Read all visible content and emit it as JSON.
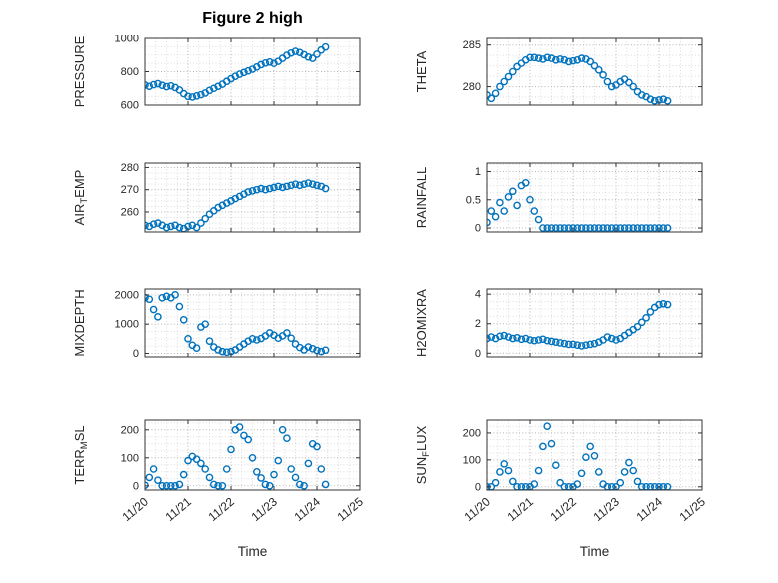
{
  "chart_data": {
    "type": "scatter",
    "layout": "4x2 subplots",
    "title": "Figure 2 high",
    "xlabel": "Time",
    "x_unit": "days since 11/20",
    "xlim": [
      0,
      5
    ],
    "x_tick_values": [
      0,
      1,
      2,
      3,
      4,
      5
    ],
    "x_tick_labels": [
      "11/20",
      "11/21",
      "11/22",
      "11/23",
      "11/24",
      "11/25"
    ],
    "grid": "dotted major and minor, both axes",
    "marker": {
      "shape": "open-circle",
      "color": "#0072BD"
    },
    "style": {
      "marker_color": "#0072BD",
      "axis_color": "#333333",
      "text_color": "#262626",
      "grid_major_color": "#b3b3b3",
      "grid_minor_color": "#dadada"
    },
    "x": [
      0,
      0.1,
      0.2,
      0.3,
      0.4,
      0.5,
      0.6,
      0.7,
      0.8,
      0.9,
      1,
      1.1,
      1.2,
      1.3,
      1.4,
      1.5,
      1.6,
      1.7,
      1.8,
      1.9,
      2,
      2.1,
      2.2,
      2.3,
      2.4,
      2.5,
      2.6,
      2.7,
      2.8,
      2.9,
      3,
      3.1,
      3.2,
      3.3,
      3.4,
      3.5,
      3.6,
      3.7,
      3.8,
      3.9,
      4,
      4.1,
      4.2
    ],
    "subplots": [
      {
        "name": "pressure",
        "ylabel": "PRESSURE",
        "ylabel_parts": [
          {
            "t": "PRESSURE"
          }
        ],
        "ylim": [
          600,
          1000
        ],
        "yticks": [
          600,
          800,
          1000
        ],
        "y": [
          720,
          712,
          722,
          728,
          718,
          710,
          715,
          705,
          690,
          668,
          652,
          648,
          655,
          662,
          672,
          688,
          700,
          712,
          725,
          742,
          758,
          772,
          785,
          795,
          805,
          815,
          828,
          842,
          852,
          858,
          850,
          862,
          880,
          898,
          912,
          922,
          915,
          902,
          888,
          880,
          905,
          930,
          948
        ]
      },
      {
        "name": "theta",
        "ylabel": "THETA",
        "ylabel_parts": [
          {
            "t": "THETA"
          }
        ],
        "ylim": [
          277.8,
          285.8
        ],
        "yticks": [
          280,
          285
        ],
        "y": [
          279,
          278.6,
          279.2,
          280,
          280.6,
          281.2,
          281.8,
          282.4,
          282.8,
          283.2,
          283.5,
          283.5,
          283.4,
          283.3,
          283.5,
          283.4,
          283.2,
          283.3,
          283.2,
          283.0,
          283.1,
          283.2,
          283.4,
          283.3,
          283.0,
          282.5,
          282.0,
          281.4,
          280.6,
          280.0,
          280.2,
          280.6,
          280.9,
          280.5,
          280.0,
          279.4,
          279.0,
          278.8,
          278.5,
          278.3,
          278.4,
          278.5,
          278.3
        ]
      },
      {
        "name": "airtemp",
        "ylabel": "AIR_TEMP",
        "ylabel_parts": [
          {
            "t": "AIR"
          },
          {
            "t": "T",
            "sub": true
          },
          {
            "t": "EMP"
          }
        ],
        "ylim": [
          251,
          282
        ],
        "yticks": [
          260,
          270,
          280
        ],
        "y": [
          254,
          253.5,
          254.5,
          255,
          254,
          253,
          253.5,
          254,
          253,
          252.5,
          253.5,
          254,
          253,
          255,
          257,
          259,
          260.5,
          262,
          263,
          264,
          265,
          266,
          267,
          268,
          269,
          269.5,
          270,
          270.5,
          270,
          270.5,
          271,
          271.5,
          271,
          271.5,
          272,
          272.5,
          272,
          272.5,
          273,
          272.5,
          272,
          271.5,
          270.5
        ]
      },
      {
        "name": "rainfall",
        "ylabel": "RAINFALL",
        "ylabel_parts": [
          {
            "t": "RAINFALL"
          }
        ],
        "ylim": [
          -0.07,
          1.15
        ],
        "yticks": [
          0,
          0.5,
          1
        ],
        "y": [
          0.1,
          0.3,
          0.2,
          0.45,
          0.3,
          0.55,
          0.65,
          0.4,
          0.75,
          0.8,
          0.5,
          0.3,
          0.15,
          0,
          0,
          0,
          0,
          0,
          0,
          0,
          0,
          0,
          0,
          0,
          0,
          0,
          0,
          0,
          0,
          0,
          0,
          0,
          0,
          0,
          0,
          0,
          0,
          0,
          0,
          0,
          0,
          0,
          0
        ]
      },
      {
        "name": "mixdepth",
        "ylabel": "MIXDEPTH",
        "ylabel_parts": [
          {
            "t": "MIXDEPTH"
          }
        ],
        "ylim": [
          -120,
          2200
        ],
        "yticks": [
          0,
          1000,
          2000
        ],
        "y": [
          1900,
          1850,
          1500,
          1250,
          1900,
          1950,
          1900,
          2000,
          1600,
          1150,
          500,
          280,
          180,
          900,
          1000,
          420,
          220,
          120,
          60,
          40,
          60,
          120,
          220,
          320,
          420,
          500,
          460,
          510,
          600,
          700,
          620,
          520,
          600,
          700,
          520,
          320,
          200,
          120,
          220,
          160,
          100,
          60,
          110
        ]
      },
      {
        "name": "h2omixra",
        "ylabel": "H2OMIXRA",
        "ylabel_parts": [
          {
            "t": "H2OMIXRA"
          }
        ],
        "ylim": [
          -0.25,
          4.35
        ],
        "yticks": [
          0,
          2,
          4
        ],
        "y": [
          1.0,
          1.1,
          1.0,
          1.15,
          1.2,
          1.1,
          1.0,
          1.05,
          0.95,
          1.0,
          0.9,
          0.85,
          0.9,
          0.95,
          0.85,
          0.8,
          0.75,
          0.7,
          0.65,
          0.6,
          0.6,
          0.55,
          0.5,
          0.55,
          0.6,
          0.65,
          0.75,
          0.9,
          1.1,
          1.0,
          0.9,
          1.0,
          1.2,
          1.4,
          1.6,
          1.8,
          2.1,
          2.4,
          2.8,
          3.1,
          3.3,
          3.35,
          3.3
        ]
      },
      {
        "name": "terr_msl",
        "ylabel": "TERR_MSL",
        "ylabel_parts": [
          {
            "t": "TERR"
          },
          {
            "t": "M",
            "sub": true
          },
          {
            "t": "SL"
          }
        ],
        "ylim": [
          -15,
          235
        ],
        "yticks": [
          0,
          100,
          200
        ],
        "y": [
          2,
          30,
          60,
          20,
          0,
          0,
          0,
          0,
          5,
          40,
          90,
          105,
          95,
          80,
          60,
          30,
          5,
          0,
          0,
          60,
          130,
          200,
          210,
          180,
          165,
          100,
          50,
          28,
          5,
          0,
          40,
          90,
          200,
          170,
          60,
          30,
          5,
          0,
          80,
          150,
          140,
          60,
          5
        ]
      },
      {
        "name": "sun_flux",
        "ylabel": "SUN_FLUX",
        "ylabel_parts": [
          {
            "t": "SUN"
          },
          {
            "t": "F",
            "sub": true
          },
          {
            "t": "LUX"
          }
        ],
        "ylim": [
          -12,
          248
        ],
        "yticks": [
          0,
          100,
          200
        ],
        "y": [
          0,
          0,
          15,
          55,
          85,
          60,
          20,
          0,
          0,
          0,
          0,
          10,
          60,
          150,
          225,
          160,
          80,
          15,
          0,
          0,
          0,
          10,
          50,
          110,
          150,
          115,
          55,
          10,
          0,
          0,
          0,
          15,
          55,
          90,
          60,
          20,
          0,
          0,
          0,
          0,
          0,
          0,
          0
        ]
      }
    ]
  }
}
